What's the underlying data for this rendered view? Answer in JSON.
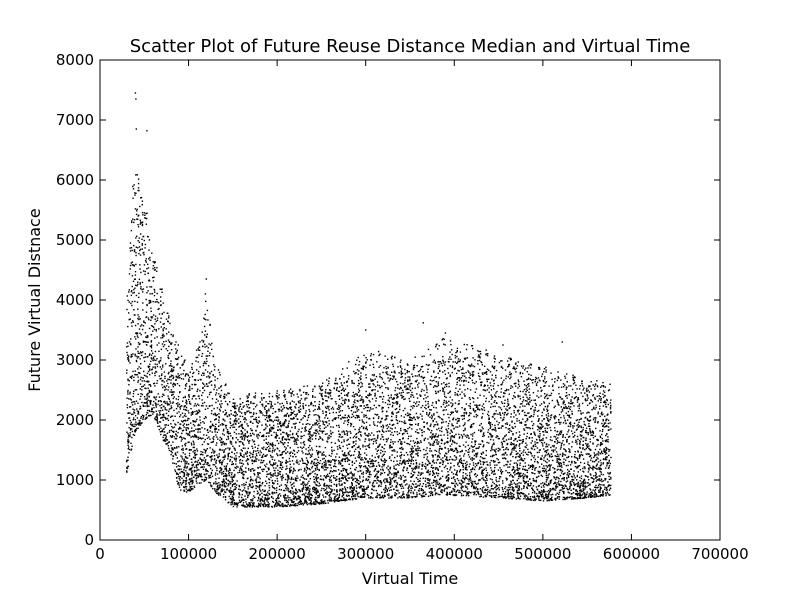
{
  "chart_data": {
    "type": "scatter",
    "title": "Scatter Plot of Future Reuse Distance Median and Virtual Time",
    "xlabel": "Virtual Time",
    "ylabel": "Future Virtual Distnace",
    "xlim": [
      0,
      700000
    ],
    "ylim": [
      0,
      8000
    ],
    "xticks": [
      0,
      100000,
      200000,
      300000,
      400000,
      500000,
      600000,
      700000
    ],
    "yticks": [
      0,
      1000,
      2000,
      3000,
      4000,
      5000,
      6000,
      7000,
      8000
    ],
    "xtick_labels": [
      "0",
      "100000",
      "200000",
      "300000",
      "400000",
      "500000",
      "600000",
      "700000"
    ],
    "ytick_labels": [
      "0",
      "1000",
      "2000",
      "3000",
      "4000",
      "5000",
      "6000",
      "7000",
      "8000"
    ],
    "grid": false,
    "marker_color": "#000000",
    "series": [
      {
        "x_range": [
          30000,
          577000
        ],
        "profile": [
          {
            "x": 30000,
            "y_low": 1100,
            "y_high": 4500
          },
          {
            "x": 40000,
            "y_low": 1800,
            "y_high": 6500
          },
          {
            "x": 50000,
            "y_low": 2000,
            "y_high": 5800
          },
          {
            "x": 60000,
            "y_low": 2100,
            "y_high": 4800
          },
          {
            "x": 70000,
            "y_low": 1700,
            "y_high": 4200
          },
          {
            "x": 80000,
            "y_low": 1400,
            "y_high": 3600
          },
          {
            "x": 90000,
            "y_low": 800,
            "y_high": 3300
          },
          {
            "x": 100000,
            "y_low": 800,
            "y_high": 2800
          },
          {
            "x": 110000,
            "y_low": 900,
            "y_high": 3200
          },
          {
            "x": 120000,
            "y_low": 1000,
            "y_high": 4200
          },
          {
            "x": 130000,
            "y_low": 800,
            "y_high": 3000
          },
          {
            "x": 150000,
            "y_low": 550,
            "y_high": 2400
          },
          {
            "x": 200000,
            "y_low": 550,
            "y_high": 2500
          },
          {
            "x": 250000,
            "y_low": 600,
            "y_high": 2600
          },
          {
            "x": 300000,
            "y_low": 700,
            "y_high": 3200
          },
          {
            "x": 350000,
            "y_low": 700,
            "y_high": 3000
          },
          {
            "x": 390000,
            "y_low": 750,
            "y_high": 3400
          },
          {
            "x": 450000,
            "y_low": 700,
            "y_high": 3100
          },
          {
            "x": 500000,
            "y_low": 650,
            "y_high": 2900
          },
          {
            "x": 550000,
            "y_low": 700,
            "y_high": 2700
          },
          {
            "x": 577000,
            "y_low": 750,
            "y_high": 2600
          }
        ],
        "outliers": [
          {
            "x": 40000,
            "y": 7450
          },
          {
            "x": 40500,
            "y": 7350
          },
          {
            "x": 41000,
            "y": 6850
          },
          {
            "x": 53000,
            "y": 6820
          },
          {
            "x": 120000,
            "y": 4350
          },
          {
            "x": 300000,
            "y": 3500
          },
          {
            "x": 365000,
            "y": 3620
          },
          {
            "x": 390000,
            "y": 3450
          },
          {
            "x": 455000,
            "y": 3250
          },
          {
            "x": 522000,
            "y": 3300
          }
        ]
      }
    ]
  }
}
